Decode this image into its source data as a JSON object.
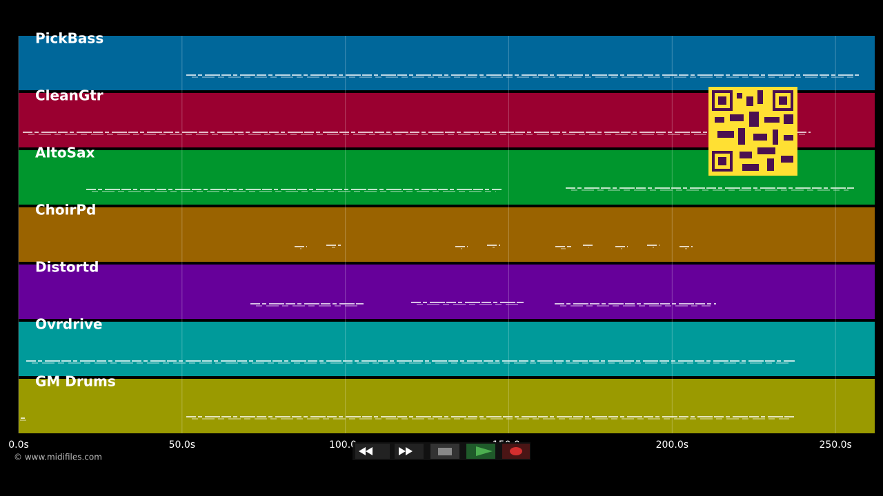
{
  "tracks": [
    {
      "name": "PickBass",
      "color": "#00679a"
    },
    {
      "name": "CleanGtr",
      "color": "#9a0030"
    },
    {
      "name": "AltoSax",
      "color": "#00962d"
    },
    {
      "name": "ChoirPd",
      "color": "#9a6300"
    },
    {
      "name": "Distortd",
      "color": "#66009a"
    },
    {
      "name": "Ovrdrive",
      "color": "#009a9a"
    },
    {
      "name": "GM Drums",
      "color": "#9a9a00"
    }
  ],
  "axis": {
    "xlim": [
      0,
      262
    ],
    "xticks": [
      {
        "value": 0,
        "label": "0.0s"
      },
      {
        "value": 50,
        "label": "50.0s"
      },
      {
        "value": 100,
        "label": "100.0s"
      },
      {
        "value": 150,
        "label": "150.0s"
      },
      {
        "value": 200,
        "label": "200.0s"
      },
      {
        "value": 250,
        "label": "250.0s"
      }
    ]
  },
  "credit": "© www.midifiles.com"
}
